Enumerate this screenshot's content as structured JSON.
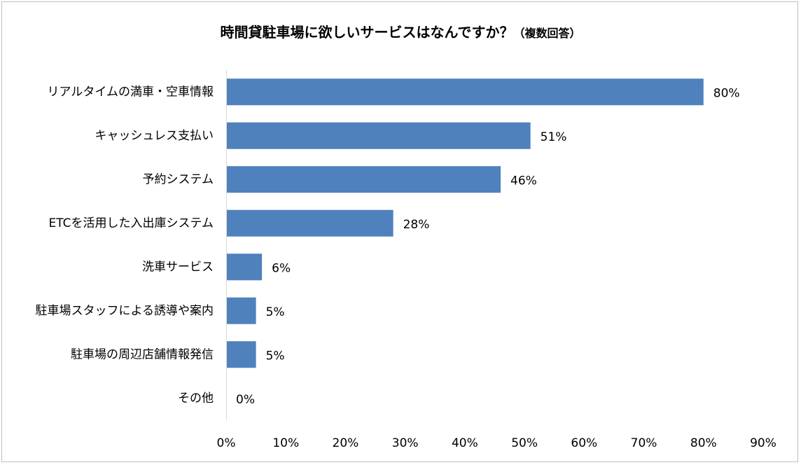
{
  "chart_data": {
    "type": "bar",
    "orientation": "horizontal",
    "title": "時間貸駐車場に欲しいサービスはなんですか？",
    "title_note": "（複数回答）",
    "categories": [
      "リアルタイムの満車・空車情報",
      "キャッシュレス支払い",
      "予約システム",
      "ETCを活用した入出庫システム",
      "洗車サービス",
      "駐車場スタッフによる誘導や案内",
      "駐車場の周辺店舗情報発信",
      "その他"
    ],
    "values": [
      80,
      51,
      46,
      28,
      6,
      5,
      5,
      0
    ],
    "data_labels": [
      "80%",
      "51%",
      "46%",
      "28%",
      "6%",
      "5%",
      "5%",
      "0%"
    ],
    "xlim": [
      0,
      90
    ],
    "xticks": [
      0,
      10,
      20,
      30,
      40,
      50,
      60,
      70,
      80,
      90
    ],
    "xtick_labels": [
      "0%",
      "10%",
      "20%",
      "30%",
      "40%",
      "50%",
      "60%",
      "70%",
      "80%",
      "90%"
    ],
    "xlabel": "",
    "ylabel": "",
    "grid": false,
    "legend": "none",
    "bar_color": "#4f81bd"
  }
}
